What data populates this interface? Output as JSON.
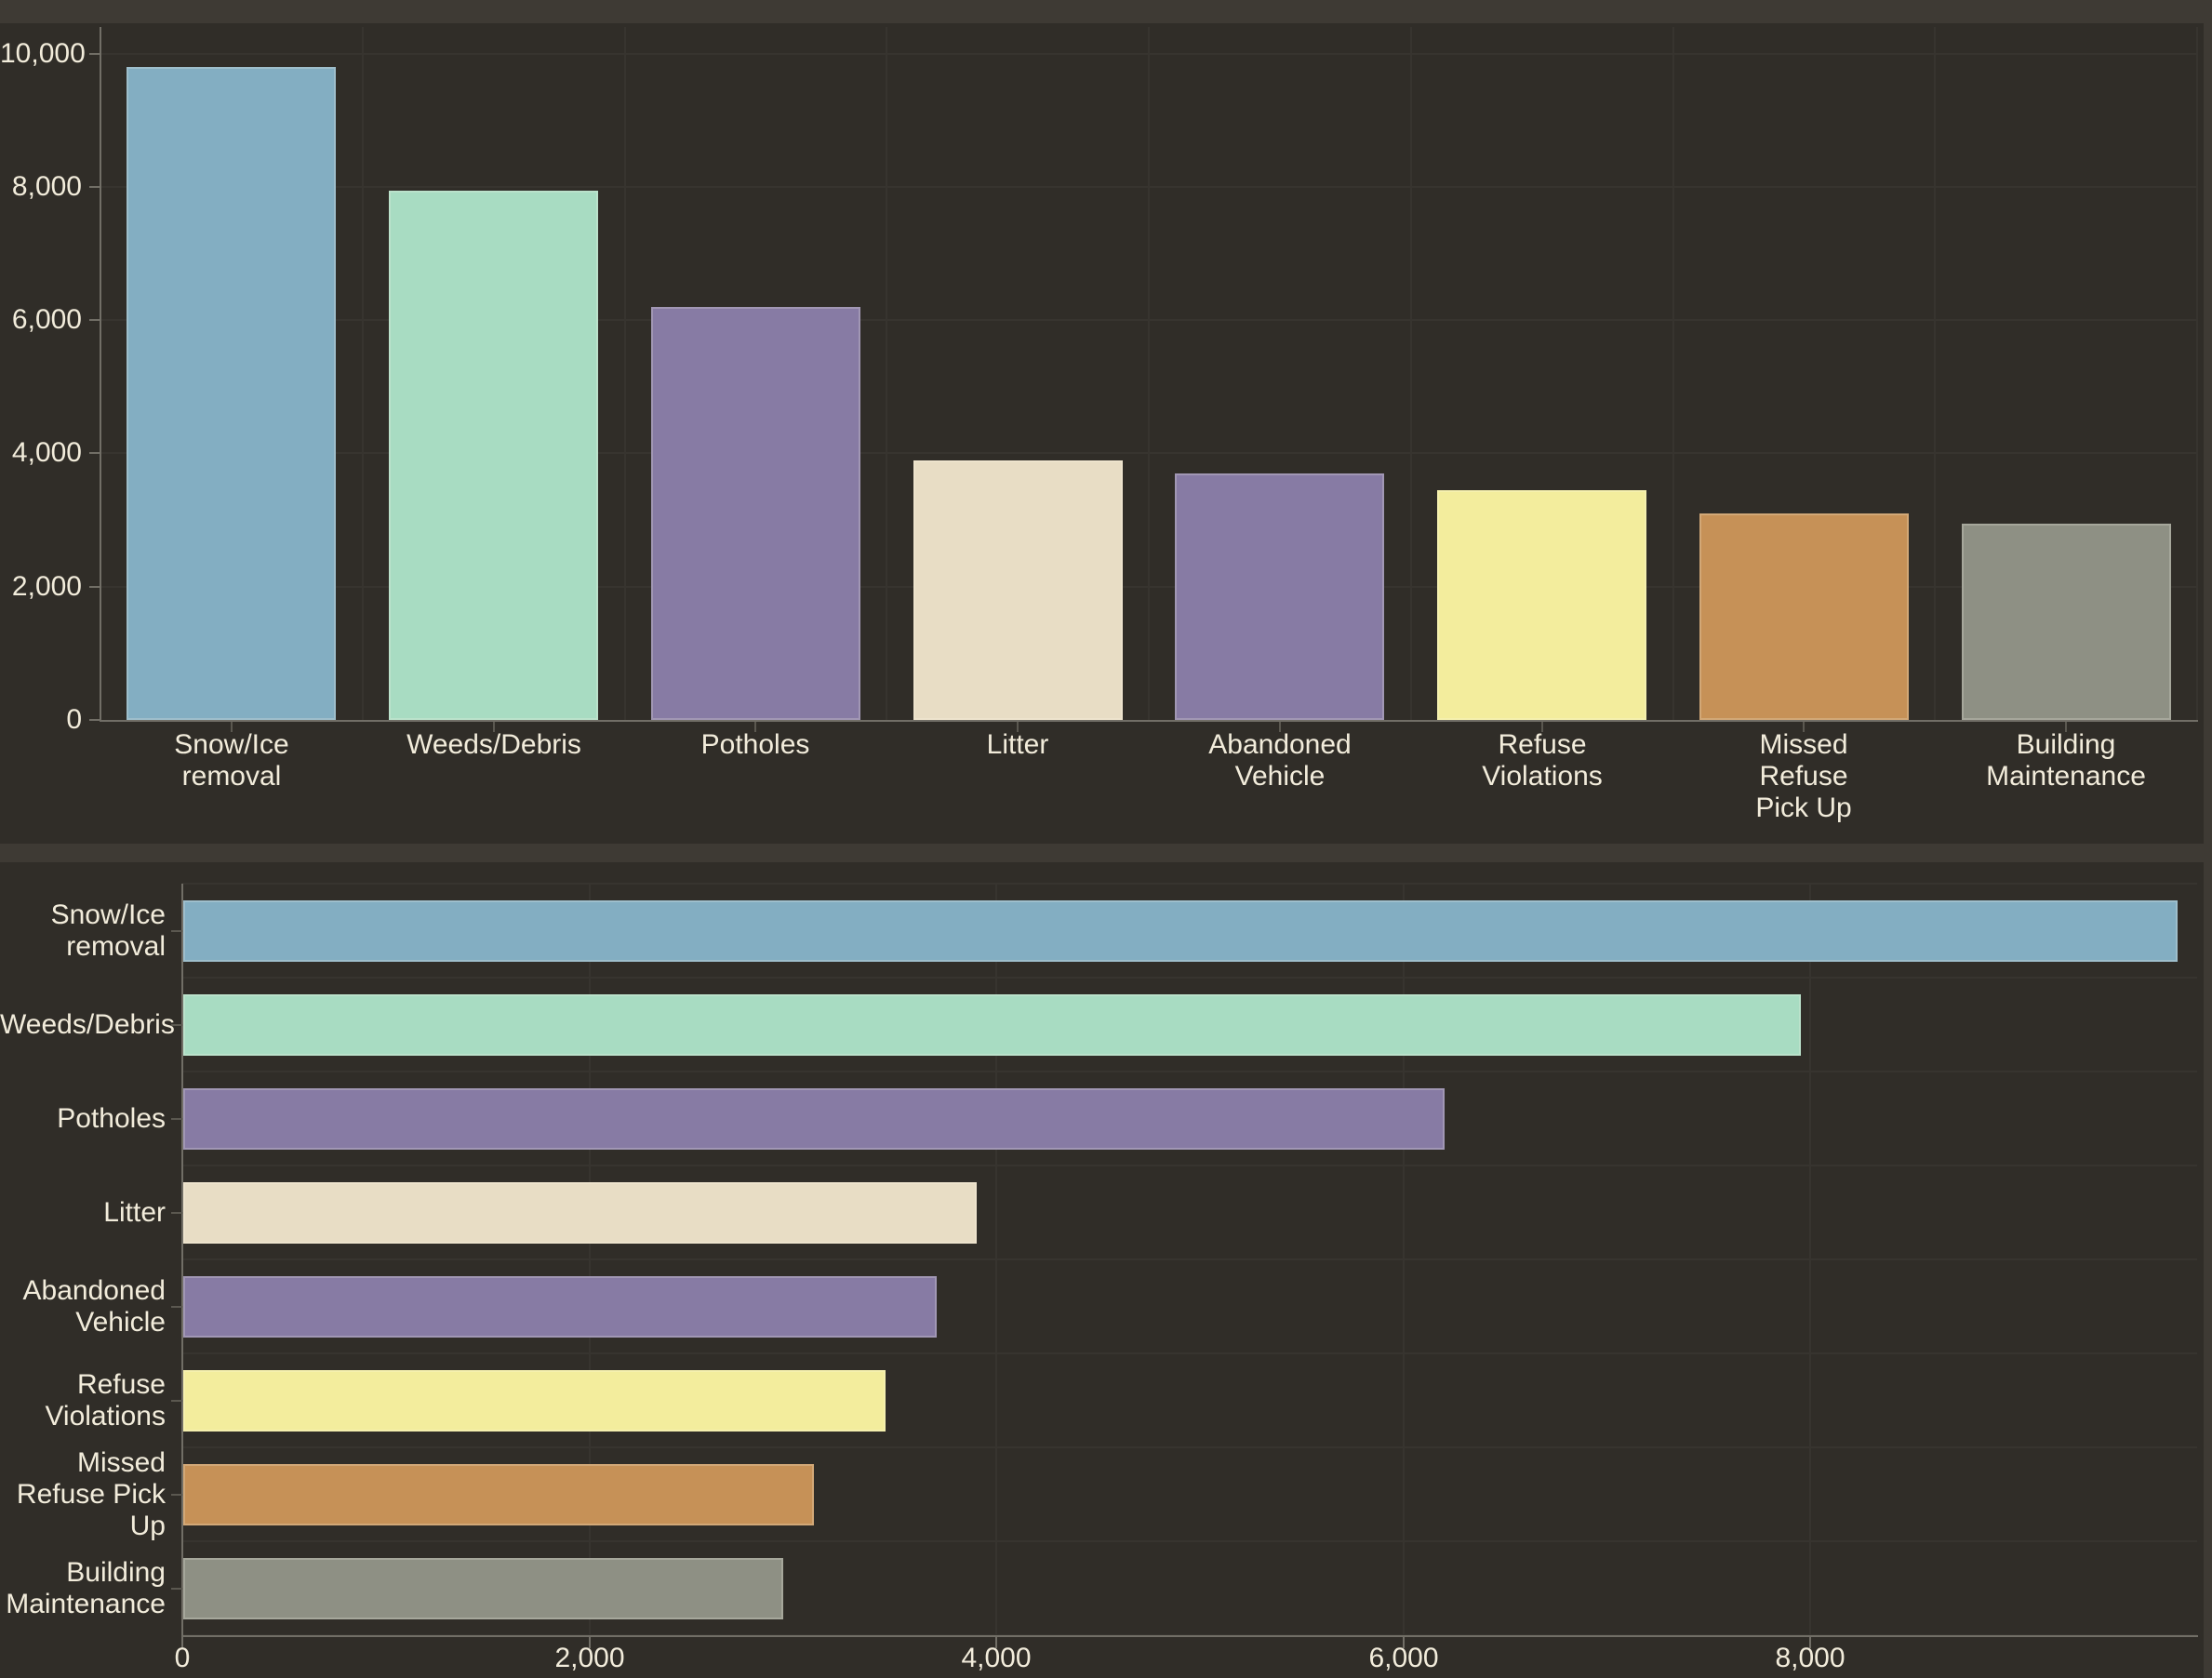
{
  "page": {
    "colors": {
      "page_background": "#3e3a34",
      "card_background": "#302d28",
      "grid_line": "#37342f",
      "axis_line": "#716e66",
      "category_tick": "#5b5850",
      "text": "#f2ecdb",
      "bar_border": "rgba(255,250,235,0.22)"
    }
  },
  "chart_data": [
    {
      "type": "bar",
      "orientation": "vertical",
      "title": "",
      "xlabel": "",
      "ylabel": "",
      "categories": [
        "Snow/Ice removal",
        "Weeds/Debris",
        "Potholes",
        "Litter",
        "Abandoned Vehicle",
        "Refuse Violations",
        "Missed Refuse Pick Up",
        "Building Maintenance"
      ],
      "category_label_lines": [
        [
          "Snow/Ice",
          "removal"
        ],
        [
          "Weeds/Debris"
        ],
        [
          "Potholes"
        ],
        [
          "Litter"
        ],
        [
          "Abandoned",
          "Vehicle"
        ],
        [
          "Refuse",
          "Violations"
        ],
        [
          "Missed",
          "Refuse",
          "Pick Up"
        ],
        [
          "Building",
          "Maintenance"
        ]
      ],
      "values": [
        9800,
        7950,
        6200,
        3900,
        3700,
        3450,
        3100,
        2950
      ],
      "bar_colors": [
        "#83aec2",
        "#a8dcc2",
        "#877ba4",
        "#e8ddc5",
        "#877ba4",
        "#f3ed9d",
        "#c69157",
        "#8e9084"
      ],
      "ylim": [
        0,
        10400
      ],
      "y_tick_values": [
        0,
        2000,
        4000,
        6000,
        8000,
        10000
      ],
      "y_tick_labels": [
        "0",
        "2,000",
        "4,000",
        "6,000",
        "8,000",
        "10,000"
      ],
      "grid": true,
      "legend": false
    },
    {
      "type": "bar",
      "orientation": "horizontal",
      "title": "",
      "xlabel": "",
      "ylabel": "",
      "categories": [
        "Snow/Ice removal",
        "Weeds/Debris",
        "Potholes",
        "Litter",
        "Abandoned Vehicle",
        "Refuse Violations",
        "Missed Refuse Pick Up",
        "Building Maintenance"
      ],
      "category_label_lines": [
        [
          "Snow/Ice",
          "removal"
        ],
        [
          "Weeds/Debris"
        ],
        [
          "Potholes"
        ],
        [
          "Litter"
        ],
        [
          "Abandoned",
          "Vehicle"
        ],
        [
          "Refuse",
          "Violations"
        ],
        [
          "Missed",
          "Refuse Pick",
          "Up"
        ],
        [
          "Building",
          "Maintenance"
        ]
      ],
      "values": [
        9800,
        7950,
        6200,
        3900,
        3700,
        3450,
        3100,
        2950
      ],
      "bar_colors": [
        "#83aec2",
        "#a8dcc2",
        "#877ba4",
        "#e8ddc5",
        "#877ba4",
        "#f3ed9d",
        "#c69157",
        "#8e9084"
      ],
      "xlim": [
        0,
        9900
      ],
      "x_tick_values": [
        0,
        2000,
        4000,
        6000,
        8000
      ],
      "x_tick_labels": [
        "0",
        "2,000",
        "4,000",
        "6,000",
        "8,000"
      ],
      "grid": true,
      "legend": false
    }
  ]
}
